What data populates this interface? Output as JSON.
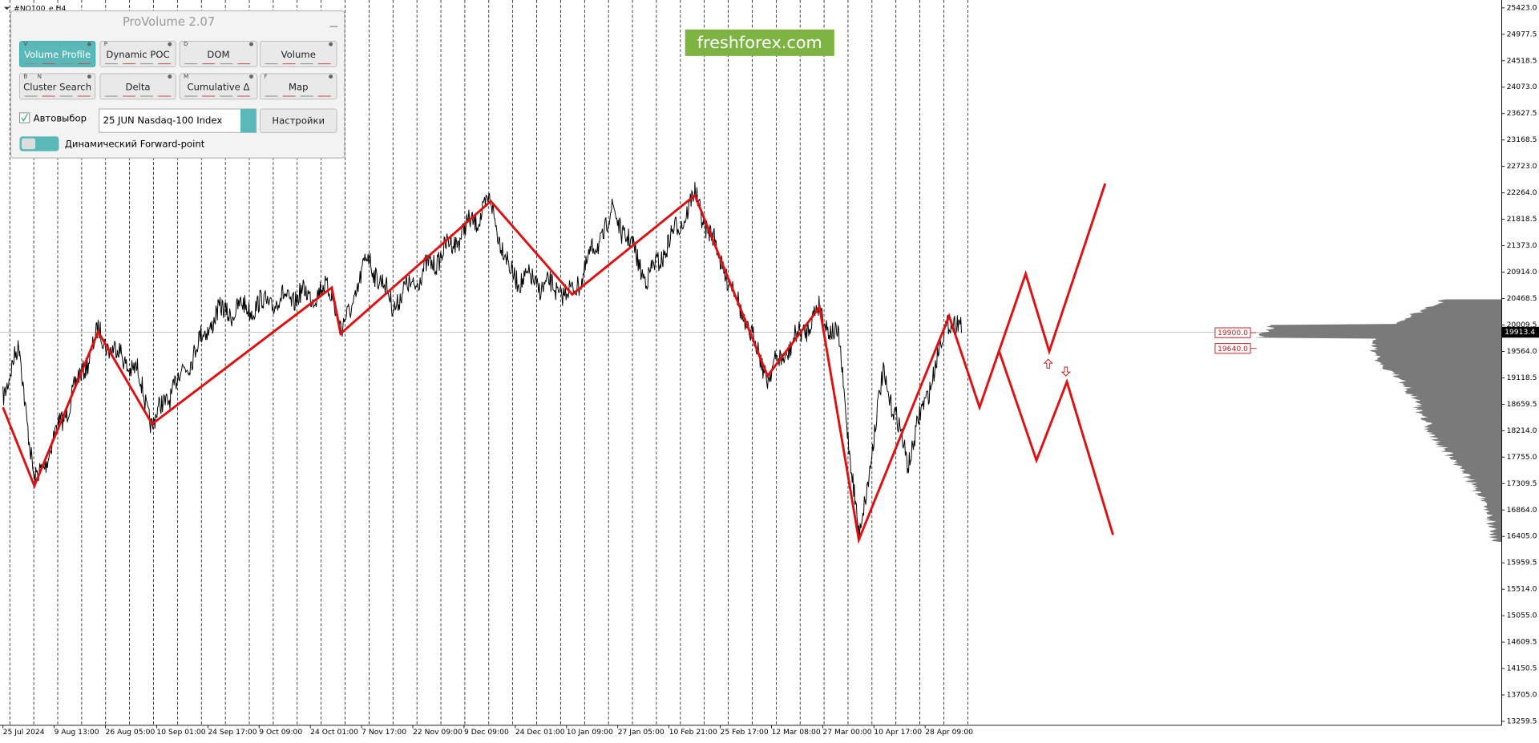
{
  "window": {
    "symbol": "#NQ100_e,H4",
    "watermark": "freshforex.com"
  },
  "panel": {
    "title": "ProVolume 2.07",
    "buttons": [
      {
        "label": "Volume Profile",
        "keys": [
          "V"
        ]
      },
      {
        "label": "Dynamic POC",
        "keys": [
          "P"
        ]
      },
      {
        "label": "DOM",
        "keys": [
          "D"
        ]
      },
      {
        "label": "Volume",
        "keys": []
      },
      {
        "label": "Cluster Search",
        "keys": [
          "B",
          "N"
        ]
      },
      {
        "label": "Delta",
        "keys": []
      },
      {
        "label": "Cumulative Δ",
        "keys": [
          "M"
        ]
      },
      {
        "label": "Map",
        "keys": [
          "F"
        ]
      }
    ],
    "autoselect": "Автовыбор",
    "instrument": "25 JUN Nasdaq-100 Index",
    "settings": "Настройки",
    "forward_point": "Динамический Forward-point"
  },
  "price_axis": {
    "labels": [
      "25423.0",
      "24977.5",
      "24518.5",
      "24073.0",
      "23627.5",
      "23168.5",
      "22723.0",
      "22264.0",
      "21818.5",
      "21373.0",
      "20914.0",
      "20468.5",
      "20009.5",
      "19564.0",
      "19118.5",
      "18659.5",
      "18214.0",
      "17755.0",
      "17309.5",
      "16864.0",
      "16405.0",
      "15959.5",
      "15514.0",
      "15055.0",
      "14609.5",
      "14150.5",
      "13705.0",
      "13259.5"
    ],
    "current": "19913.4"
  },
  "levels": [
    "19900.0",
    "19640.0"
  ],
  "time_axis": {
    "labels": [
      "25 Jul 2024",
      "9 Aug 13:00",
      "26 Aug 05:00",
      "10 Sep 01:00",
      "24 Sep 17:00",
      "9 Oct 09:00",
      "24 Oct 01:00",
      "7 Nov 17:00",
      "22 Nov 09:00",
      "9 Dec 09:00",
      "24 Dec 01:00",
      "10 Jan 09:00",
      "27 Jan 05:00",
      "10 Feb 21:00",
      "25 Feb 17:00",
      "12 Mar 08:00",
      "27 Mar 00:00",
      "10 Apr 17:00",
      "28 Apr 09:00"
    ]
  }
}
